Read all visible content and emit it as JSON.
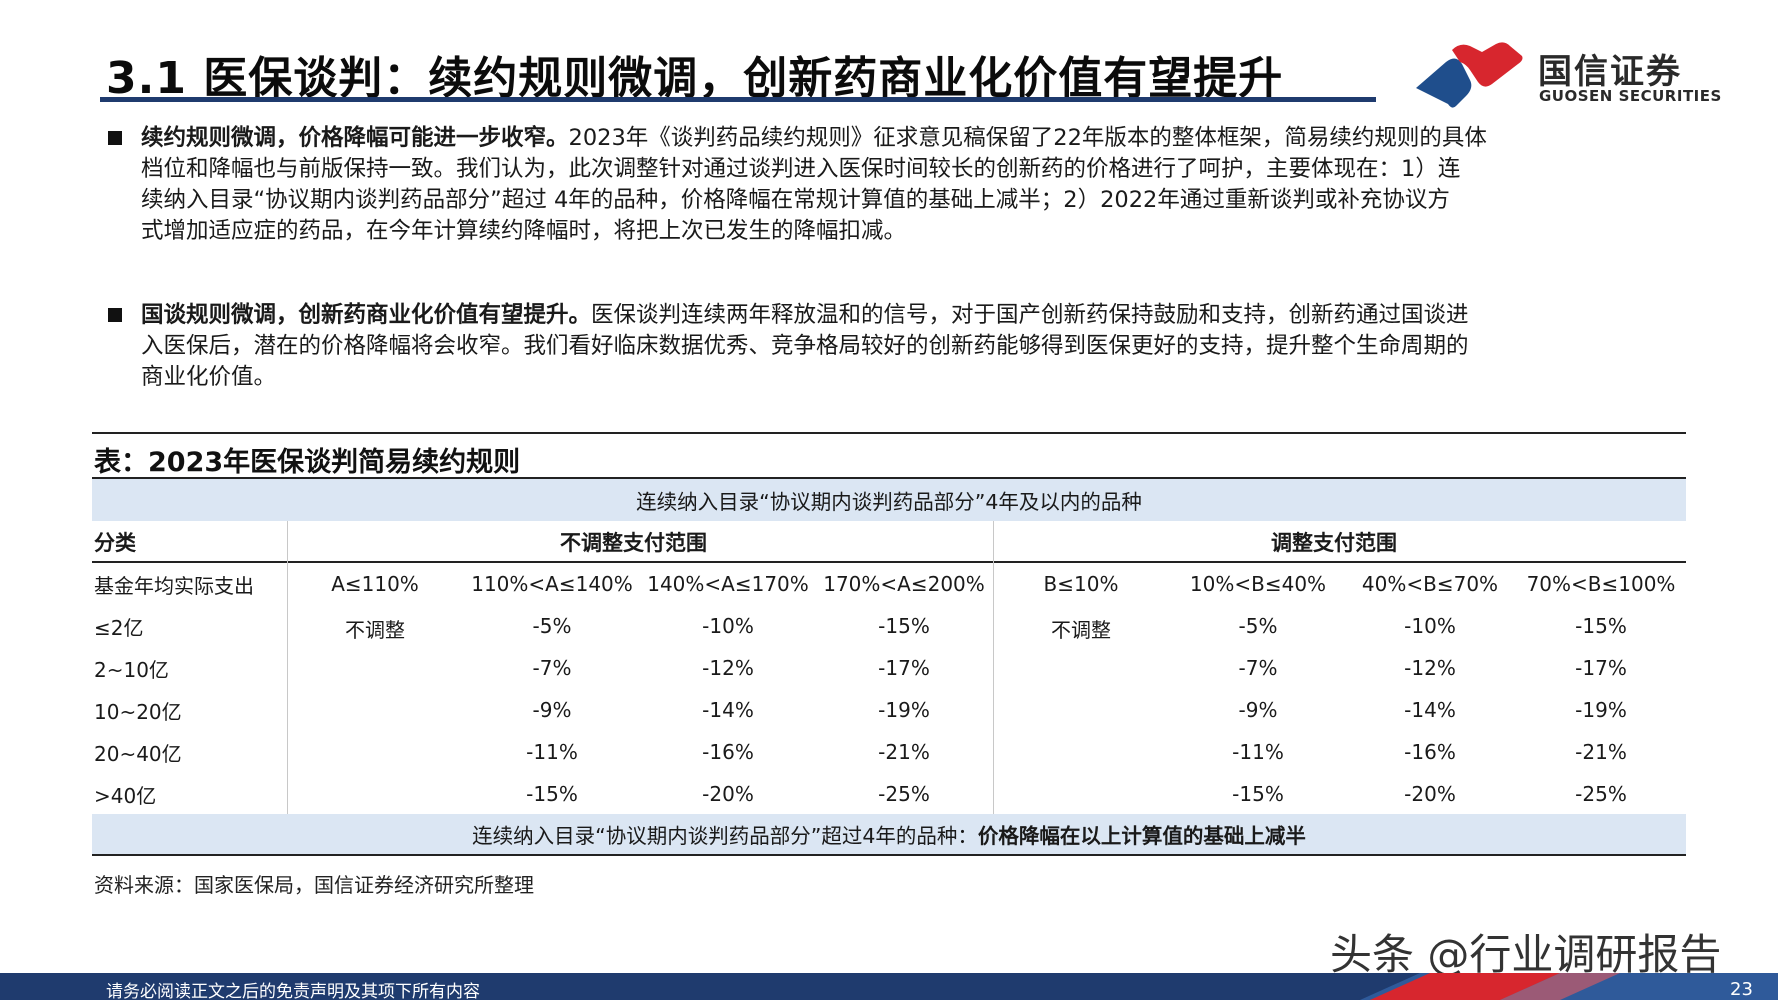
{
  "header": {
    "title": "3.1 医保谈判：续约规则微调，创新药商业化价值有望提升",
    "logo_cn": "国信证券",
    "logo_en": "GUOSEN SECURITIES"
  },
  "bullets": [
    {
      "bold": "续约规则微调，价格降幅可能进一步收窄。",
      "lines": [
        "2023年《谈判药品续约规则》征求意见稿保留了22年版本的整体框架，简易续约规则的具体",
        "档位和降幅也与前版保持一致。我们认为，此次调整针对通过谈判进入医保时间较长的创新药的价格进行了呵护，主要体现在：1）连",
        "续纳入目录“协议期内谈判药品部分”超过 4年的品种，价格降幅在常规计算值的基础上减半；2）2022年通过重新谈判或补充协议方",
        "式增加适应症的药品，在今年计算续约降幅时，将把上次已发生的降幅扣减。"
      ]
    },
    {
      "bold": "国谈规则微调，创新药商业化价值有望提升。",
      "lines": [
        "医保谈判连续两年释放温和的信号，对于国产创新药保持鼓励和支持，创新药通过国谈进",
        "入医保后，潜在的价格降幅将会收窄。我们看好临床数据优秀、竞争格局较好的创新药能够得到医保更好的支持，提升整个生命周期的",
        "商业化价值。"
      ]
    }
  ],
  "table": {
    "title": "表：2023年医保谈判简易续约规则",
    "top_band": "连续纳入目录“协议期内谈判药品部分”4年及以内的品种",
    "col_category": "分类",
    "group_a": "不调整支付范围",
    "group_b": "调整支付范围",
    "row_header": "基金年均实际支出",
    "a_headers": [
      "A≤110%",
      "110%<A≤140%",
      "140%<A≤170%",
      "170%<A≤200%"
    ],
    "b_headers": [
      "B≤10%",
      "10%<B≤40%",
      "40%<B≤70%",
      "70%<B≤100%"
    ],
    "rows": [
      {
        "label": "≤2亿",
        "a": [
          "不调整",
          "-5%",
          "-10%",
          "-15%"
        ],
        "b": [
          "不调整",
          "-5%",
          "-10%",
          "-15%"
        ]
      },
      {
        "label": "2~10亿",
        "a": [
          "",
          "-7%",
          "-12%",
          "-17%"
        ],
        "b": [
          "",
          "-7%",
          "-12%",
          "-17%"
        ]
      },
      {
        "label": "10~20亿",
        "a": [
          "",
          "-9%",
          "-14%",
          "-19%"
        ],
        "b": [
          "",
          "-9%",
          "-14%",
          "-19%"
        ]
      },
      {
        "label": "20~40亿",
        "a": [
          "",
          "-11%",
          "-16%",
          "-21%"
        ],
        "b": [
          "",
          "-11%",
          "-16%",
          "-21%"
        ]
      },
      {
        "label": ">40亿",
        "a": [
          "",
          "-15%",
          "-20%",
          "-25%"
        ],
        "b": [
          "",
          "-15%",
          "-20%",
          "-25%"
        ]
      }
    ],
    "bottom_band_prefix": "连续纳入目录“协议期内谈判药品部分”超过4年的品种：",
    "bottom_band_bold": "价格降幅在以上计算值的基础上减半"
  },
  "source": "资料来源：国家医保局，国信证券经济研究所整理",
  "watermark": "头条 @行业调研报告",
  "footer": {
    "disclaimer": "请务必阅读正文之后的免责声明及其项下所有内容",
    "page": "23"
  },
  "colors": {
    "navy": "#1f3b6e",
    "band": "#dbe6f3",
    "logo_red": "#d7262e",
    "logo_blue": "#1f4e8c"
  }
}
